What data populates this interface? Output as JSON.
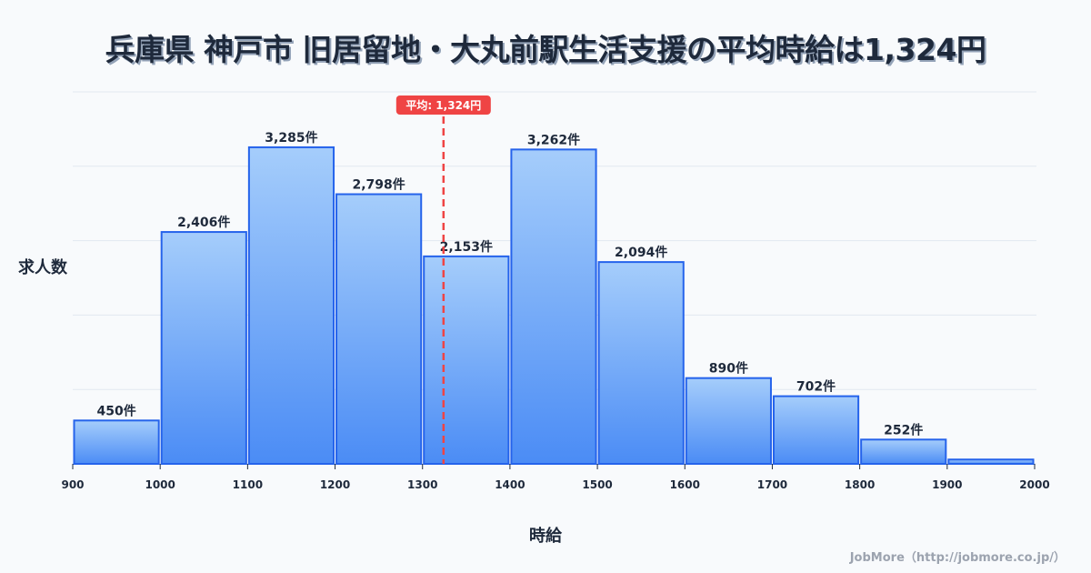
{
  "title": "兵庫県 神戸市 旧居留地・大丸前駅生活支援の平均時給は1,324円",
  "credit": "JobMore（http://jobmore.co.jp/）",
  "colors": {
    "bar_top": "#a5cdfb",
    "bar_bottom": "#4b8cf5",
    "bar_stroke": "#2563eb",
    "mean_line": "#ef4444",
    "grid": "#e2e8f0",
    "text": "#1e293b",
    "background": "#f8fafc"
  },
  "chart_data": {
    "type": "bar",
    "title": "兵庫県 神戸市 旧居留地・大丸前駅生活支援の平均時給は1,324円",
    "xlabel": "時給",
    "ylabel": "求人数",
    "bins": [
      {
        "from": 900,
        "to": 1000,
        "value": 450,
        "label": "450件"
      },
      {
        "from": 1000,
        "to": 1100,
        "value": 2406,
        "label": "2,406件"
      },
      {
        "from": 1100,
        "to": 1200,
        "value": 3285,
        "label": "3,285件"
      },
      {
        "from": 1200,
        "to": 1300,
        "value": 2798,
        "label": "2,798件"
      },
      {
        "from": 1300,
        "to": 1400,
        "value": 2153,
        "label": "2,153件"
      },
      {
        "from": 1400,
        "to": 1500,
        "value": 3262,
        "label": "3,262件"
      },
      {
        "from": 1500,
        "to": 1600,
        "value": 2094,
        "label": "2,094件"
      },
      {
        "from": 1600,
        "to": 1700,
        "value": 890,
        "label": "890件"
      },
      {
        "from": 1700,
        "to": 1800,
        "value": 702,
        "label": "702件"
      },
      {
        "from": 1800,
        "to": 1900,
        "value": 252,
        "label": "252件"
      },
      {
        "from": 1900,
        "to": 2000,
        "value": 45,
        "label": ""
      }
    ],
    "x_ticks": [
      900,
      1000,
      1100,
      1200,
      1300,
      1400,
      1500,
      1600,
      1700,
      1800,
      1900,
      2000
    ],
    "xlim": [
      900,
      2000
    ],
    "ylim": [
      0,
      3860
    ],
    "grid": true,
    "grid_lines": 5,
    "mean": {
      "value": 1324,
      "label": "平均: 1,324円"
    }
  }
}
